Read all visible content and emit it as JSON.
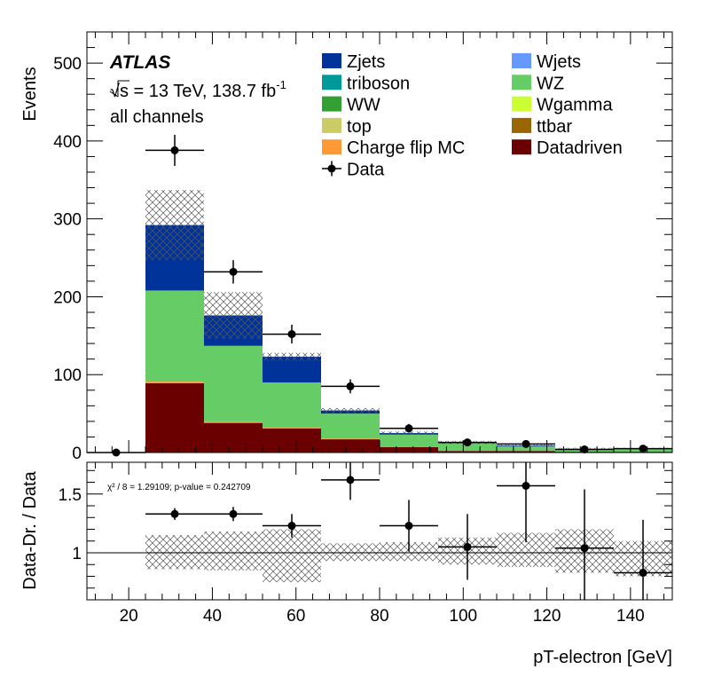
{
  "chart_data": {
    "type": "stacked-histogram-with-ratio",
    "xlabel": "pT-electron [GeV]",
    "ylabel": "Events",
    "ratio_ylabel": "Data-Dr. / Data",
    "xlim": [
      10,
      150
    ],
    "ylim": [
      0,
      540
    ],
    "ratio_ylim": [
      0.6,
      1.77
    ],
    "x_ticks": [
      "20",
      "40",
      "60",
      "80",
      "100",
      "120",
      "140"
    ],
    "y_ticks": [
      "0",
      "100",
      "200",
      "300",
      "400",
      "500"
    ],
    "ratio_ticks": [
      "1",
      "1.5"
    ],
    "atlas_label": "ATLAS",
    "energy_label": "√s = 13 TeV, 138.7 fb",
    "energy_superscript": "-1",
    "channel_label": "all channels",
    "stat_text": "χ² / 8 = 1.29109; p-value = 0.242709",
    "bin_edges": [
      10,
      24,
      38,
      52,
      66,
      80,
      94,
      108,
      122,
      136,
      150
    ],
    "series": [
      {
        "name": "Datadriven",
        "color": "#6b0000",
        "values": [
          0,
          89,
          38,
          31,
          17,
          7,
          2,
          2,
          1,
          1
        ]
      },
      {
        "name": "Charge flip MC",
        "color": "#ff9933",
        "values": [
          0,
          2,
          2,
          1,
          1,
          0,
          0,
          0,
          0,
          0
        ]
      },
      {
        "name": "ttbar",
        "color": "#996600",
        "values": [
          0,
          0,
          0,
          0,
          0,
          0,
          0,
          0,
          0,
          0
        ]
      },
      {
        "name": "top",
        "color": "#cccc66",
        "values": [
          0,
          0,
          0,
          0,
          0,
          0,
          0,
          0,
          0,
          0
        ]
      },
      {
        "name": "Wgamma",
        "color": "#ccff33",
        "values": [
          0,
          0,
          0,
          0,
          0,
          0,
          0,
          0,
          0,
          0
        ]
      },
      {
        "name": "WW",
        "color": "#33a033",
        "values": [
          0,
          0,
          0,
          0,
          0,
          0,
          0,
          0,
          0,
          0
        ]
      },
      {
        "name": "WZ",
        "color": "#66cc66",
        "values": [
          0,
          117,
          97,
          58,
          32,
          16,
          10,
          6,
          4,
          4
        ]
      },
      {
        "name": "triboson",
        "color": "#009999",
        "values": [
          0,
          0,
          0,
          0,
          0,
          0,
          0,
          0,
          0,
          0
        ]
      },
      {
        "name": "Wjets",
        "color": "#6699ff",
        "values": [
          0,
          0,
          0,
          0,
          0,
          0,
          0,
          0,
          0,
          0
        ]
      },
      {
        "name": "Zjets",
        "color": "#003399",
        "values": [
          0,
          84,
          39,
          33,
          4,
          2,
          1,
          1,
          0,
          0
        ]
      }
    ],
    "uncertainty_band": [
      0,
      45,
      30,
      5,
      3,
      2,
      2,
      1,
      1,
      1
    ],
    "data": {
      "name": "Data",
      "x": [
        17,
        31,
        45,
        59,
        73,
        87,
        101,
        115,
        129,
        143
      ],
      "y": [
        0,
        388,
        232,
        152,
        85,
        31,
        13,
        11,
        4,
        5
      ],
      "yerr": [
        0,
        20,
        15,
        12,
        9,
        5.6,
        3.6,
        3.3,
        2,
        2.2
      ]
    },
    "ratio": {
      "x": [
        31,
        45,
        59,
        73,
        87,
        101,
        115,
        129,
        143
      ],
      "y": [
        1.33,
        1.33,
        1.23,
        1.62,
        1.23,
        1.05,
        1.57,
        1.04,
        0.83
      ],
      "yerr": [
        0.05,
        0.06,
        0.1,
        0.17,
        0.22,
        0.28,
        0.48,
        0.5,
        0.45
      ],
      "band_lo": [
        0.86,
        0.85,
        0.75,
        0.93,
        0.93,
        0.9,
        0.88,
        0.83,
        0.8
      ],
      "band_hi": [
        1.15,
        1.18,
        1.2,
        1.08,
        1.09,
        1.13,
        1.17,
        1.2,
        1.1
      ]
    }
  },
  "legend": [
    {
      "label": "Zjets",
      "color": "#003399",
      "kind": "box"
    },
    {
      "label": "Wjets",
      "color": "#6699ff",
      "kind": "box"
    },
    {
      "label": "triboson",
      "color": "#009999",
      "kind": "box"
    },
    {
      "label": "WZ",
      "color": "#66cc66",
      "kind": "box"
    },
    {
      "label": "WW",
      "color": "#33a033",
      "kind": "box"
    },
    {
      "label": "Wgamma",
      "color": "#ccff33",
      "kind": "box"
    },
    {
      "label": "top",
      "color": "#cccc66",
      "kind": "box"
    },
    {
      "label": "ttbar",
      "color": "#996600",
      "kind": "box"
    },
    {
      "label": "Charge flip MC",
      "color": "#ff9933",
      "kind": "box"
    },
    {
      "label": "Datadriven",
      "color": "#6b0000",
      "kind": "box"
    },
    {
      "label": "Data",
      "color": "#000000",
      "kind": "marker"
    }
  ]
}
